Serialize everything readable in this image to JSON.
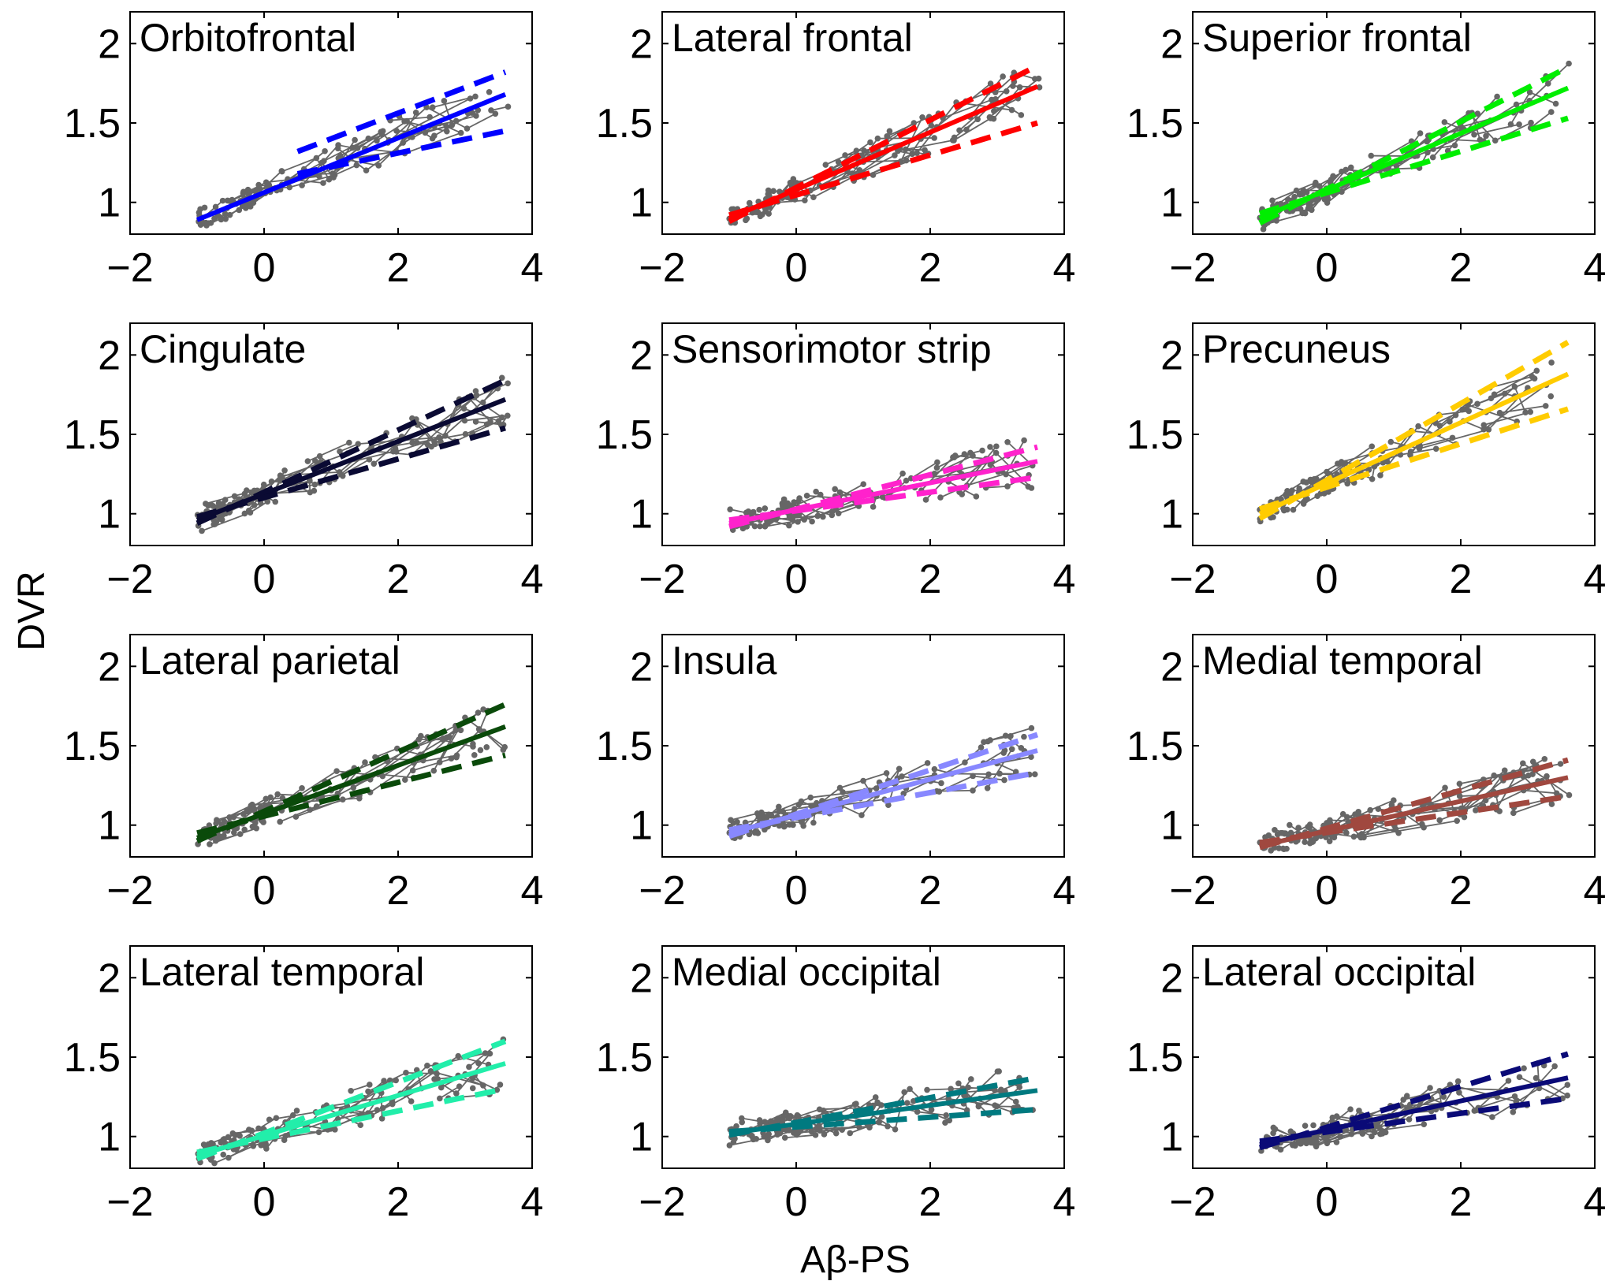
{
  "figure": {
    "xlabel": "Aβ-PS",
    "ylabel": "DVR"
  },
  "chart_data": [
    {
      "type": "line",
      "title": "Orbitofrontal",
      "color": "#0000ff",
      "xlim": [
        -2,
        4
      ],
      "ylim": [
        0.8,
        2.2
      ],
      "x_ticks": [
        -2,
        0,
        2,
        4
      ],
      "x_tick_labels": [
        "−2",
        "0",
        "2",
        "4"
      ],
      "y_ticks": [
        1,
        1.5,
        2
      ],
      "y_tick_labels": [
        "1",
        "1.5",
        "2"
      ],
      "series": [
        {
          "values": [
            [
              -1.0,
              0.89
            ],
            [
              3.6,
              1.68
            ]
          ]
        },
        {
          "values": [
            [
              0.5,
              1.32
            ],
            [
              3.6,
              1.82
            ]
          ]
        },
        {
          "values": [
            [
              0.5,
              1.18
            ],
            [
              3.6,
              1.45
            ]
          ]
        }
      ]
    },
    {
      "type": "line",
      "title": "Lateral frontal",
      "color": "#ff0000",
      "xlim": [
        -2,
        4
      ],
      "ylim": [
        0.8,
        2.2
      ],
      "x_ticks": [
        -2,
        0,
        2,
        4
      ],
      "x_tick_labels": [
        "−2",
        "0",
        "2",
        "4"
      ],
      "y_ticks": [
        1,
        1.5,
        2
      ],
      "y_tick_labels": [
        "1",
        "1.5",
        "2"
      ],
      "series": [
        {
          "values": [
            [
              -1.0,
              0.9
            ],
            [
              3.6,
              1.73
            ]
          ]
        },
        {
          "values": [
            [
              -1.0,
              0.88
            ],
            [
              3.6,
              1.86
            ]
          ]
        },
        {
          "values": [
            [
              -1.0,
              0.92
            ],
            [
              3.6,
              1.5
            ]
          ]
        }
      ]
    },
    {
      "type": "line",
      "title": "Superior frontal",
      "color": "#00ee00",
      "xlim": [
        -2,
        4
      ],
      "ylim": [
        0.8,
        2.2
      ],
      "x_ticks": [
        -2,
        0,
        2,
        4
      ],
      "x_tick_labels": [
        "−2",
        "0",
        "2",
        "4"
      ],
      "y_ticks": [
        1,
        1.5,
        2
      ],
      "y_tick_labels": [
        "1",
        "1.5",
        "2"
      ],
      "series": [
        {
          "values": [
            [
              -1.0,
              0.9
            ],
            [
              3.6,
              1.72
            ]
          ]
        },
        {
          "values": [
            [
              -1.0,
              0.87
            ],
            [
              3.6,
              1.85
            ]
          ]
        },
        {
          "values": [
            [
              -1.0,
              0.93
            ],
            [
              3.6,
              1.53
            ]
          ]
        }
      ]
    },
    {
      "type": "line",
      "title": "Cingulate",
      "color": "#0a0a33",
      "xlim": [
        -2,
        4
      ],
      "ylim": [
        0.8,
        2.2
      ],
      "x_ticks": [
        -2,
        0,
        2,
        4
      ],
      "x_tick_labels": [
        "−2",
        "0",
        "2",
        "4"
      ],
      "y_ticks": [
        1,
        1.5,
        2
      ],
      "y_tick_labels": [
        "1",
        "1.5",
        "2"
      ],
      "series": [
        {
          "values": [
            [
              -1.0,
              0.96
            ],
            [
              3.6,
              1.72
            ]
          ]
        },
        {
          "values": [
            [
              -1.0,
              0.94
            ],
            [
              3.6,
              1.84
            ]
          ]
        },
        {
          "values": [
            [
              -1.0,
              0.98
            ],
            [
              3.6,
              1.54
            ]
          ]
        }
      ]
    },
    {
      "type": "line",
      "title": "Sensorimotor strip",
      "color": "#ff22cc",
      "xlim": [
        -2,
        4
      ],
      "ylim": [
        0.8,
        2.2
      ],
      "x_ticks": [
        -2,
        0,
        2,
        4
      ],
      "x_tick_labels": [
        "−2",
        "0",
        "2",
        "4"
      ],
      "y_ticks": [
        1,
        1.5,
        2
      ],
      "y_tick_labels": [
        "1",
        "1.5",
        "2"
      ],
      "series": [
        {
          "values": [
            [
              -1.0,
              0.94
            ],
            [
              3.6,
              1.33
            ]
          ]
        },
        {
          "values": [
            [
              -1.0,
              0.92
            ],
            [
              3.6,
              1.42
            ]
          ]
        },
        {
          "values": [
            [
              -1.0,
              0.96
            ],
            [
              3.6,
              1.23
            ]
          ]
        }
      ]
    },
    {
      "type": "line",
      "title": "Precuneus",
      "color": "#ffcc00",
      "xlim": [
        -2,
        4
      ],
      "ylim": [
        0.8,
        2.2
      ],
      "x_ticks": [
        -2,
        0,
        2,
        4
      ],
      "x_tick_labels": [
        "−2",
        "0",
        "2",
        "4"
      ],
      "y_ticks": [
        1,
        1.5,
        2
      ],
      "y_tick_labels": [
        "1",
        "1.5",
        "2"
      ],
      "series": [
        {
          "values": [
            [
              -1.0,
              1.0
            ],
            [
              3.6,
              1.88
            ]
          ]
        },
        {
          "values": [
            [
              -1.0,
              0.97
            ],
            [
              3.6,
              2.08
            ]
          ]
        },
        {
          "values": [
            [
              -1.0,
              1.03
            ],
            [
              3.6,
              1.66
            ]
          ]
        }
      ]
    },
    {
      "type": "line",
      "title": "Lateral parietal",
      "color": "#0a4a0a",
      "xlim": [
        -2,
        4
      ],
      "ylim": [
        0.8,
        2.2
      ],
      "x_ticks": [
        -2,
        0,
        2,
        4
      ],
      "x_tick_labels": [
        "−2",
        "0",
        "2",
        "4"
      ],
      "y_ticks": [
        1,
        1.5,
        2
      ],
      "y_tick_labels": [
        "1",
        "1.5",
        "2"
      ],
      "series": [
        {
          "values": [
            [
              -1.0,
              0.92
            ],
            [
              3.6,
              1.62
            ]
          ]
        },
        {
          "values": [
            [
              -1.0,
              0.9
            ],
            [
              3.6,
              1.76
            ]
          ]
        },
        {
          "values": [
            [
              -1.0,
              0.95
            ],
            [
              3.6,
              1.44
            ]
          ]
        }
      ]
    },
    {
      "type": "line",
      "title": "Insula",
      "color": "#8888ff",
      "xlim": [
        -2,
        4
      ],
      "ylim": [
        0.8,
        2.2
      ],
      "x_ticks": [
        -2,
        0,
        2,
        4
      ],
      "x_tick_labels": [
        "−2",
        "0",
        "2",
        "4"
      ],
      "y_ticks": [
        1,
        1.5,
        2
      ],
      "y_tick_labels": [
        "1",
        "1.5",
        "2"
      ],
      "series": [
        {
          "values": [
            [
              -1.0,
              0.95
            ],
            [
              3.6,
              1.47
            ]
          ]
        },
        {
          "values": [
            [
              -1.0,
              0.93
            ],
            [
              3.6,
              1.57
            ]
          ]
        },
        {
          "values": [
            [
              -1.0,
              0.97
            ],
            [
              3.6,
              1.33
            ]
          ]
        }
      ]
    },
    {
      "type": "line",
      "title": "Medial temporal",
      "color": "#a0483f",
      "xlim": [
        -2,
        4
      ],
      "ylim": [
        0.8,
        2.2
      ],
      "x_ticks": [
        -2,
        0,
        2,
        4
      ],
      "x_tick_labels": [
        "−2",
        "0",
        "2",
        "4"
      ],
      "y_ticks": [
        1,
        1.5,
        2
      ],
      "y_tick_labels": [
        "1",
        "1.5",
        "2"
      ],
      "series": [
        {
          "values": [
            [
              -1.0,
              0.87
            ],
            [
              3.6,
              1.3
            ]
          ]
        },
        {
          "values": [
            [
              -1.0,
              0.86
            ],
            [
              3.6,
              1.41
            ]
          ]
        },
        {
          "values": [
            [
              -1.0,
              0.89
            ],
            [
              3.6,
              1.18
            ]
          ]
        }
      ]
    },
    {
      "type": "line",
      "title": "Lateral temporal",
      "color": "#22eeaa",
      "xlim": [
        -2,
        4
      ],
      "ylim": [
        0.8,
        2.2
      ],
      "x_ticks": [
        -2,
        0,
        2,
        4
      ],
      "x_tick_labels": [
        "−2",
        "0",
        "2",
        "4"
      ],
      "y_ticks": [
        1,
        1.5,
        2
      ],
      "y_tick_labels": [
        "1",
        "1.5",
        "2"
      ],
      "series": [
        {
          "values": [
            [
              -1.0,
              0.88
            ],
            [
              3.6,
              1.46
            ]
          ]
        },
        {
          "values": [
            [
              -1.0,
              0.86
            ],
            [
              3.6,
              1.6
            ]
          ]
        },
        {
          "values": [
            [
              -1.0,
              0.9
            ],
            [
              3.6,
              1.3
            ]
          ]
        }
      ]
    },
    {
      "type": "line",
      "title": "Medial occipital",
      "color": "#007a80",
      "xlim": [
        -2,
        4
      ],
      "ylim": [
        0.8,
        2.2
      ],
      "x_ticks": [
        -2,
        0,
        2,
        4
      ],
      "x_tick_labels": [
        "−2",
        "0",
        "2",
        "4"
      ],
      "y_ticks": [
        1,
        1.5,
        2
      ],
      "y_tick_labels": [
        "1",
        "1.5",
        "2"
      ],
      "series": [
        {
          "values": [
            [
              -1.0,
              1.02
            ],
            [
              3.6,
              1.29
            ]
          ]
        },
        {
          "values": [
            [
              -1.0,
              1.01
            ],
            [
              3.6,
              1.37
            ]
          ]
        },
        {
          "values": [
            [
              -1.0,
              1.03
            ],
            [
              3.6,
              1.17
            ]
          ]
        }
      ]
    },
    {
      "type": "line",
      "title": "Lateral occipital",
      "color": "#0a0a77",
      "xlim": [
        -2,
        4
      ],
      "ylim": [
        0.8,
        2.2
      ],
      "x_ticks": [
        -2,
        0,
        2,
        4
      ],
      "x_tick_labels": [
        "−2",
        "0",
        "2",
        "4"
      ],
      "y_ticks": [
        1,
        1.5,
        2
      ],
      "y_tick_labels": [
        "1",
        "1.5",
        "2"
      ],
      "series": [
        {
          "values": [
            [
              -1.0,
              0.95
            ],
            [
              3.6,
              1.37
            ]
          ]
        },
        {
          "values": [
            [
              -1.0,
              0.93
            ],
            [
              3.6,
              1.52
            ]
          ]
        },
        {
          "values": [
            [
              -1.0,
              0.97
            ],
            [
              3.6,
              1.24
            ]
          ]
        }
      ]
    }
  ]
}
